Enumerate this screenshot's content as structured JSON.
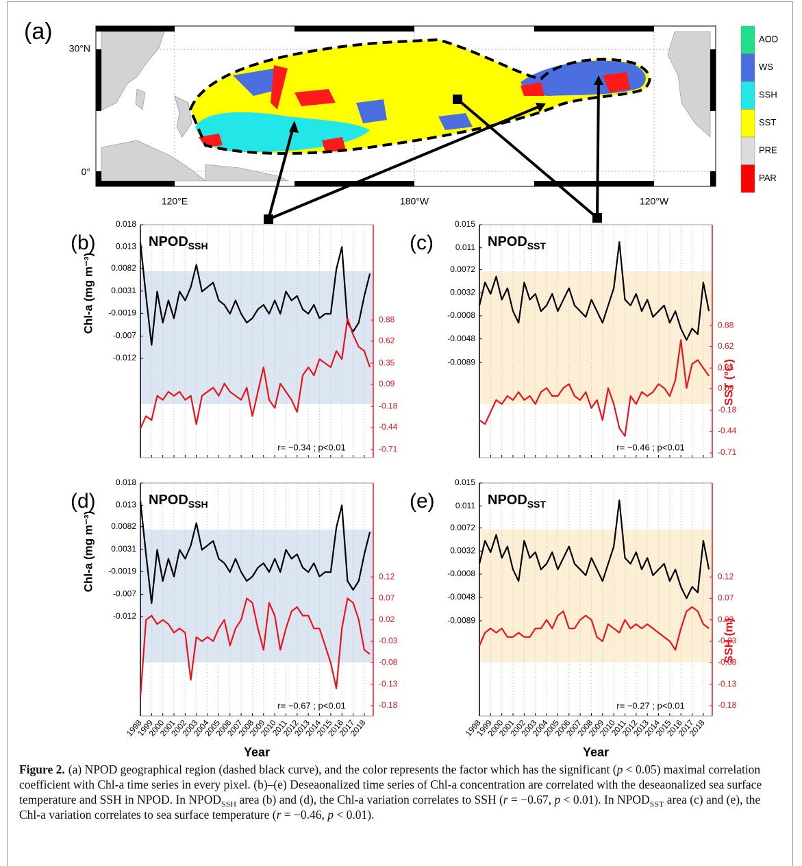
{
  "map": {
    "panel_label": "(a)",
    "lat_labels": [
      "30°N",
      "0°"
    ],
    "lon_labels": [
      "120°E",
      "180°W",
      "120°W"
    ],
    "legend": [
      {
        "name": "AOD",
        "color": "#20e08c"
      },
      {
        "name": "WS",
        "color": "#4c6fe0"
      },
      {
        "name": "SSH",
        "color": "#22e6e8"
      },
      {
        "name": "SST",
        "color": "#ffff00"
      },
      {
        "name": "PRE",
        "color": "#dcdcdc"
      },
      {
        "name": "PAR",
        "color": "#ff0000"
      }
    ]
  },
  "chart_data": [
    {
      "type": "line",
      "panel_label": "(b)",
      "title": "NPOD",
      "title_subscript": "SSH",
      "ylabel": "Chl-a (mg m⁻³)",
      "annotation": "r= −0.34 ; p<0.01",
      "shade_color": "#dce6f2",
      "xtick_labels": false,
      "xlim": [
        1998,
        2018.8
      ],
      "xticks": [
        1998,
        1999,
        2000,
        2001,
        2002,
        2003,
        2004,
        2005,
        2006,
        2007,
        2008,
        2009,
        2010,
        2011,
        2012,
        2013,
        2014,
        2015,
        2016,
        2017,
        2018
      ],
      "ylim": [
        -0.0343,
        0.018
      ],
      "yticks": [
        0.018,
        0.013,
        0.0082,
        0.0031,
        -0.0019,
        -0.007,
        -0.012
      ],
      "y2lim": [
        -0.81,
        2.05
      ],
      "y2ticks": [
        0.88,
        0.62,
        0.35,
        0.09,
        -0.18,
        -0.44,
        -0.71
      ],
      "x": [
        1998,
        1998.5,
        1999,
        1999.5,
        2000,
        2000.5,
        2001,
        2001.5,
        2002,
        2002.5,
        2003,
        2003.5,
        2004,
        2004.5,
        2005,
        2005.5,
        2006,
        2006.5,
        2007,
        2007.5,
        2008,
        2008.5,
        2009,
        2009.5,
        2010,
        2010.5,
        2011,
        2011.5,
        2012,
        2012.5,
        2013,
        2013.5,
        2014,
        2014.5,
        2015,
        2015.5,
        2016,
        2016.5,
        2017,
        2017.5,
        2018,
        2018.5
      ],
      "series": [
        {
          "color": "#000000",
          "values": [
            0.014,
            0.002,
            -0.009,
            0.003,
            -0.004,
            0.001,
            -0.003,
            0.003,
            0.001,
            0.004,
            0.009,
            0.003,
            0.004,
            0.005,
            0.001,
            0.0,
            -0.002,
            0.001,
            -0.002,
            -0.004,
            -0.003,
            -0.001,
            0.0,
            -0.002,
            0.001,
            -0.002,
            0.003,
            0.001,
            0.002,
            -0.001,
            -0.002,
            0.0,
            -0.003,
            -0.002,
            -0.002,
            0.008,
            0.013,
            -0.004,
            -0.006,
            -0.004,
            0.002,
            0.007
          ]
        },
        {
          "color": "#e8141c",
          "axis": "y2",
          "values": [
            -0.45,
            -0.3,
            -0.35,
            -0.05,
            -0.1,
            0.0,
            -0.05,
            0.0,
            -0.1,
            -0.05,
            -0.4,
            -0.05,
            0.0,
            0.05,
            -0.05,
            0.1,
            0.0,
            -0.05,
            -0.1,
            0.05,
            -0.3,
            0.0,
            0.3,
            -0.1,
            -0.2,
            0.1,
            0.0,
            -0.1,
            -0.25,
            0.2,
            0.3,
            0.2,
            0.4,
            0.35,
            0.3,
            0.5,
            0.4,
            0.9,
            0.7,
            0.55,
            0.5,
            0.3
          ]
        }
      ]
    },
    {
      "type": "line",
      "panel_label": "(c)",
      "title": "NPOD",
      "title_subscript": "SST",
      "y2label": "SST (°C)",
      "annotation": "r= −0.46 ; p<0.01",
      "shade_color": "#fdefd5",
      "xtick_labels": false,
      "xlim": [
        1998,
        2018.8
      ],
      "xticks": [
        1998,
        1999,
        2000,
        2001,
        2002,
        2003,
        2004,
        2005,
        2006,
        2007,
        2008,
        2009,
        2010,
        2011,
        2012,
        2013,
        2014,
        2015,
        2016,
        2017,
        2018
      ],
      "ylim": [
        -0.0254,
        0.015
      ],
      "yticks": [
        0.015,
        0.011,
        0.0072,
        0.0032,
        -0.0008,
        -0.0048,
        -0.0089
      ],
      "y2lim": [
        -0.77,
        2.14
      ],
      "y2ticks": [
        0.88,
        0.62,
        0.35,
        0.09,
        -0.18,
        -0.44,
        -0.71
      ],
      "x": [
        1998,
        1998.5,
        1999,
        1999.5,
        2000,
        2000.5,
        2001,
        2001.5,
        2002,
        2002.5,
        2003,
        2003.5,
        2004,
        2004.5,
        2005,
        2005.5,
        2006,
        2006.5,
        2007,
        2007.5,
        2008,
        2008.5,
        2009,
        2009.5,
        2010,
        2010.5,
        2011,
        2011.5,
        2012,
        2012.5,
        2013,
        2013.5,
        2014,
        2014.5,
        2015,
        2015.5,
        2016,
        2016.5,
        2017,
        2017.5,
        2018,
        2018.5
      ],
      "series": [
        {
          "color": "#000000",
          "values": [
            0.001,
            0.005,
            0.003,
            0.006,
            0.002,
            0.004,
            0.0,
            -0.002,
            0.005,
            0.002,
            0.003,
            0.0,
            0.001,
            0.003,
            0.0,
            0.002,
            0.004,
            0.001,
            0.0,
            -0.001,
            0.002,
            0.0,
            -0.002,
            0.001,
            0.004,
            0.012,
            0.002,
            0.001,
            0.003,
            0.0,
            0.002,
            -0.001,
            0.0,
            0.001,
            -0.002,
            0.0,
            -0.003,
            -0.005,
            -0.003,
            -0.004,
            0.005,
            0.0
          ]
        },
        {
          "color": "#e8141c",
          "axis": "y2",
          "values": [
            -0.3,
            -0.35,
            -0.2,
            -0.05,
            -0.1,
            0.0,
            -0.05,
            0.05,
            -0.05,
            0.0,
            -0.1,
            0.05,
            0.1,
            0.0,
            0.0,
            0.1,
            0.15,
            0.0,
            -0.05,
            0.05,
            -0.15,
            -0.05,
            -0.3,
            0.1,
            -0.1,
            -0.4,
            -0.5,
            0.0,
            -0.1,
            0.05,
            0.0,
            0.05,
            0.15,
            0.1,
            0.0,
            0.2,
            0.7,
            0.1,
            0.4,
            0.45,
            0.35,
            0.25
          ]
        }
      ]
    },
    {
      "type": "line",
      "panel_label": "(d)",
      "title": "NPOD",
      "title_subscript": "SSH",
      "ylabel": "Chl-a (mg m⁻³)",
      "xlabel": "Year",
      "annotation": "r= −0.67 ; p<0.01",
      "shade_color": "#dce6f2",
      "xtick_labels": true,
      "xlim": [
        1998,
        2018.8
      ],
      "xticks": [
        1998,
        1999,
        2000,
        2001,
        2002,
        2003,
        2004,
        2005,
        2006,
        2007,
        2008,
        2009,
        2010,
        2011,
        2012,
        2013,
        2014,
        2015,
        2016,
        2017,
        2018
      ],
      "ylim": [
        -0.0343,
        0.018
      ],
      "yticks": [
        0.018,
        0.013,
        0.0082,
        0.0031,
        -0.0019,
        -0.007,
        -0.012
      ],
      "y2lim": [
        -0.204,
        0.339
      ],
      "y2ticks": [
        0.12,
        0.07,
        0.02,
        -0.03,
        -0.08,
        -0.13,
        -0.18
      ],
      "x": [
        1998,
        1998.5,
        1999,
        1999.5,
        2000,
        2000.5,
        2001,
        2001.5,
        2002,
        2002.5,
        2003,
        2003.5,
        2004,
        2004.5,
        2005,
        2005.5,
        2006,
        2006.5,
        2007,
        2007.5,
        2008,
        2008.5,
        2009,
        2009.5,
        2010,
        2010.5,
        2011,
        2011.5,
        2012,
        2012.5,
        2013,
        2013.5,
        2014,
        2014.5,
        2015,
        2015.5,
        2016,
        2016.5,
        2017,
        2017.5,
        2018,
        2018.5
      ],
      "series": [
        {
          "color": "#000000",
          "values": [
            0.014,
            0.002,
            -0.009,
            0.003,
            -0.004,
            0.001,
            -0.003,
            0.003,
            0.001,
            0.004,
            0.009,
            0.003,
            0.004,
            0.005,
            0.001,
            0.0,
            -0.002,
            0.001,
            -0.002,
            -0.004,
            -0.003,
            -0.001,
            0.0,
            -0.002,
            0.001,
            -0.002,
            0.003,
            0.001,
            0.002,
            -0.001,
            -0.002,
            0.0,
            -0.003,
            -0.002,
            -0.002,
            0.008,
            0.013,
            -0.004,
            -0.006,
            -0.004,
            0.002,
            0.007
          ]
        },
        {
          "color": "#e8141c",
          "axis": "y2",
          "values": [
            -0.16,
            0.02,
            0.03,
            0.01,
            0.02,
            0.01,
            -0.01,
            0.0,
            -0.01,
            -0.12,
            -0.02,
            -0.03,
            -0.02,
            -0.03,
            0.0,
            0.02,
            -0.04,
            0.0,
            0.02,
            0.07,
            0.06,
            0.0,
            -0.05,
            0.06,
            0.03,
            -0.05,
            0.0,
            0.04,
            0.05,
            0.03,
            0.03,
            0.0,
            0.0,
            -0.04,
            -0.08,
            -0.14,
            0.0,
            0.07,
            0.06,
            0.02,
            -0.05,
            -0.06
          ]
        }
      ]
    },
    {
      "type": "line",
      "panel_label": "(e)",
      "title": "NPOD",
      "title_subscript": "SST",
      "y2label": "SSH (m)",
      "xlabel": "Year",
      "annotation": "r= −0.27 ; p<0.01",
      "shade_color": "#fdefd5",
      "xtick_labels": true,
      "xlim": [
        1998,
        2018.8
      ],
      "xticks": [
        1998,
        1999,
        2000,
        2001,
        2002,
        2003,
        2004,
        2005,
        2006,
        2007,
        2008,
        2009,
        2010,
        2011,
        2012,
        2013,
        2014,
        2015,
        2016,
        2017,
        2018
      ],
      "ylim": [
        -0.0254,
        0.015
      ],
      "yticks": [
        0.015,
        0.011,
        0.0072,
        0.0032,
        -0.0008,
        -0.0048,
        -0.0089
      ],
      "y2lim": [
        -0.204,
        0.339
      ],
      "y2ticks": [
        0.12,
        0.07,
        0.02,
        -0.03,
        -0.08,
        -0.13,
        -0.18
      ],
      "x": [
        1998,
        1998.5,
        1999,
        1999.5,
        2000,
        2000.5,
        2001,
        2001.5,
        2002,
        2002.5,
        2003,
        2003.5,
        2004,
        2004.5,
        2005,
        2005.5,
        2006,
        2006.5,
        2007,
        2007.5,
        2008,
        2008.5,
        2009,
        2009.5,
        2010,
        2010.5,
        2011,
        2011.5,
        2012,
        2012.5,
        2013,
        2013.5,
        2014,
        2014.5,
        2015,
        2015.5,
        2016,
        2016.5,
        2017,
        2017.5,
        2018,
        2018.5
      ],
      "series": [
        {
          "color": "#000000",
          "values": [
            0.001,
            0.005,
            0.003,
            0.006,
            0.002,
            0.004,
            0.0,
            -0.002,
            0.005,
            0.002,
            0.003,
            0.0,
            0.001,
            0.003,
            0.0,
            0.002,
            0.004,
            0.001,
            0.0,
            -0.001,
            0.002,
            0.0,
            -0.002,
            0.001,
            0.004,
            0.012,
            0.002,
            0.001,
            0.003,
            0.0,
            0.002,
            -0.001,
            0.0,
            0.001,
            -0.002,
            0.0,
            -0.003,
            -0.005,
            -0.003,
            -0.004,
            0.005,
            0.0
          ]
        },
        {
          "color": "#e8141c",
          "axis": "y2",
          "values": [
            -0.04,
            -0.01,
            0.0,
            -0.01,
            0.0,
            -0.02,
            -0.02,
            -0.01,
            -0.02,
            -0.02,
            0.0,
            0.0,
            0.02,
            0.0,
            0.03,
            0.04,
            0.0,
            0.0,
            0.02,
            0.03,
            0.02,
            -0.02,
            -0.03,
            0.01,
            0.0,
            -0.01,
            0.02,
            0.0,
            0.01,
            0.0,
            0.01,
            0.0,
            -0.01,
            -0.02,
            -0.03,
            -0.05,
            0.0,
            0.04,
            0.05,
            0.04,
            0.01,
            0.0
          ]
        }
      ]
    }
  ],
  "caption": {
    "label": "Figure 2.",
    "runs": [
      {
        "text": "(a) NPOD geographical region (dashed black curve), and the color represents the factor which has the significant ("
      },
      {
        "text": "p",
        "style": "italic"
      },
      {
        "text": " < 0.05) maximal correlation coefficient with Chl-a time series in every pixel. (b)–(e) Deseaonalized time series of Chl-a concentration are correlated with the deseaonalized sea surface temperature and SSH in NPOD. In NPOD"
      },
      {
        "text": "SSH",
        "style": "sub"
      },
      {
        "text": " area (b) and (d), the Chl-a variation correlates to SSH ("
      },
      {
        "text": "r",
        "style": "italic"
      },
      {
        "text": " = −0.67, "
      },
      {
        "text": "p",
        "style": "italic"
      },
      {
        "text": " < 0.01). In NPOD"
      },
      {
        "text": "SST",
        "style": "sub"
      },
      {
        "text": " area (c) and (e), the Chl-a variation correlates to sea surface temperature ("
      },
      {
        "text": "r",
        "style": "italic"
      },
      {
        "text": " = −0.46, "
      },
      {
        "text": "p",
        "style": "italic"
      },
      {
        "text": " < 0.01)."
      }
    ]
  }
}
